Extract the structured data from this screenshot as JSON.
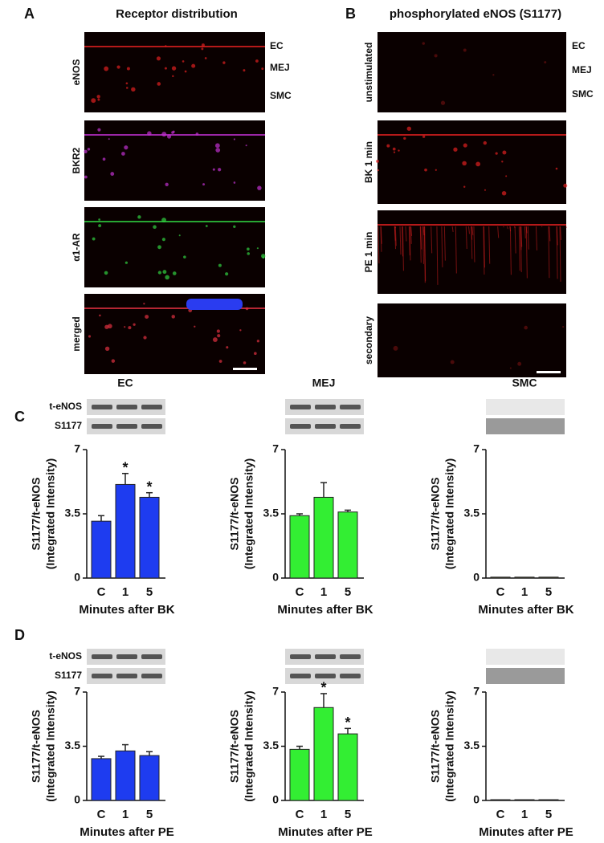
{
  "panel_a": {
    "letter": "A",
    "title": "Receptor distribution",
    "images": [
      "eNOS",
      "BKR2",
      "α1-AR",
      "merged"
    ],
    "layers": [
      "EC",
      "MEJ",
      "SMC"
    ]
  },
  "panel_b": {
    "letter": "B",
    "title": "phosphorylated eNOS (S1177)",
    "images": [
      "unstimulated",
      "BK 1 min",
      "PE 1 min",
      "secondary"
    ],
    "layers": [
      "EC",
      "MEJ",
      "SMC"
    ]
  },
  "row_letters": [
    "C",
    "D"
  ],
  "chart_data": [
    {
      "type": "bar",
      "column_title": "EC",
      "blot_labels": [
        "t-eNOS",
        "S1177"
      ],
      "ylabel": [
        "S1177/t-eNOS",
        "(Integrated Intensity)"
      ],
      "xlabel": "Minutes after BK",
      "categories": [
        "C",
        "1",
        "5"
      ],
      "values": [
        3.1,
        5.1,
        4.4
      ],
      "errors": [
        0.3,
        0.6,
        0.25
      ],
      "significance": [
        null,
        "*",
        "*"
      ],
      "color": "#1e3cf0",
      "ylim": [
        0,
        7
      ],
      "yticks": [
        0,
        3.5,
        7
      ]
    },
    {
      "type": "bar",
      "column_title": "MEJ",
      "ylabel": [
        "S1177/t-eNOS",
        "(Integrated Intensity)"
      ],
      "xlabel": "Minutes after BK",
      "categories": [
        "C",
        "1",
        "5"
      ],
      "values": [
        3.4,
        4.4,
        3.6
      ],
      "errors": [
        0.1,
        0.8,
        0.1
      ],
      "color": "#33ee33",
      "ylim": [
        0,
        7
      ],
      "yticks": [
        0,
        3.5,
        7
      ]
    },
    {
      "type": "bar",
      "column_title": "SMC",
      "ylabel": [
        "S1177/t-eNOS",
        "(Integrated Intensity)"
      ],
      "xlabel": "Minutes after BK",
      "categories": [
        "C",
        "1",
        "5"
      ],
      "values": [
        0.05,
        0.05,
        0.05
      ],
      "color": "#8a8a3a",
      "ylim": [
        0,
        7
      ],
      "yticks": [
        0,
        3.5,
        7
      ]
    },
    {
      "type": "bar",
      "blot_labels": [
        "t-eNOS",
        "S1177"
      ],
      "ylabel": [
        "S1177/t-eNOS",
        "(Integrated Intensity)"
      ],
      "xlabel": "Minutes after PE",
      "categories": [
        "C",
        "1",
        "5"
      ],
      "values": [
        2.7,
        3.2,
        2.9
      ],
      "errors": [
        0.15,
        0.4,
        0.25
      ],
      "color": "#1e3cf0",
      "ylim": [
        0,
        7
      ],
      "yticks": [
        0,
        3.5,
        7
      ]
    },
    {
      "type": "bar",
      "ylabel": [
        "S1177/t-eNOS",
        "(Integrated Intensity)"
      ],
      "xlabel": "Minutes after PE",
      "categories": [
        "C",
        "1",
        "5"
      ],
      "values": [
        3.3,
        6.0,
        4.3
      ],
      "errors": [
        0.2,
        0.9,
        0.35
      ],
      "significance": [
        null,
        "*",
        "*"
      ],
      "color": "#33ee33",
      "ylim": [
        0,
        7
      ],
      "yticks": [
        0,
        3.5,
        7
      ]
    },
    {
      "type": "bar",
      "ylabel": [
        "S1177/t-eNOS",
        "(Integrated Intensity)"
      ],
      "xlabel": "Minutes after PE",
      "categories": [
        "C",
        "1",
        "5"
      ],
      "values": [
        0.05,
        0.05,
        0.05
      ],
      "color": "#8a8a3a",
      "ylim": [
        0,
        7
      ],
      "yticks": [
        0,
        3.5,
        7
      ]
    }
  ]
}
